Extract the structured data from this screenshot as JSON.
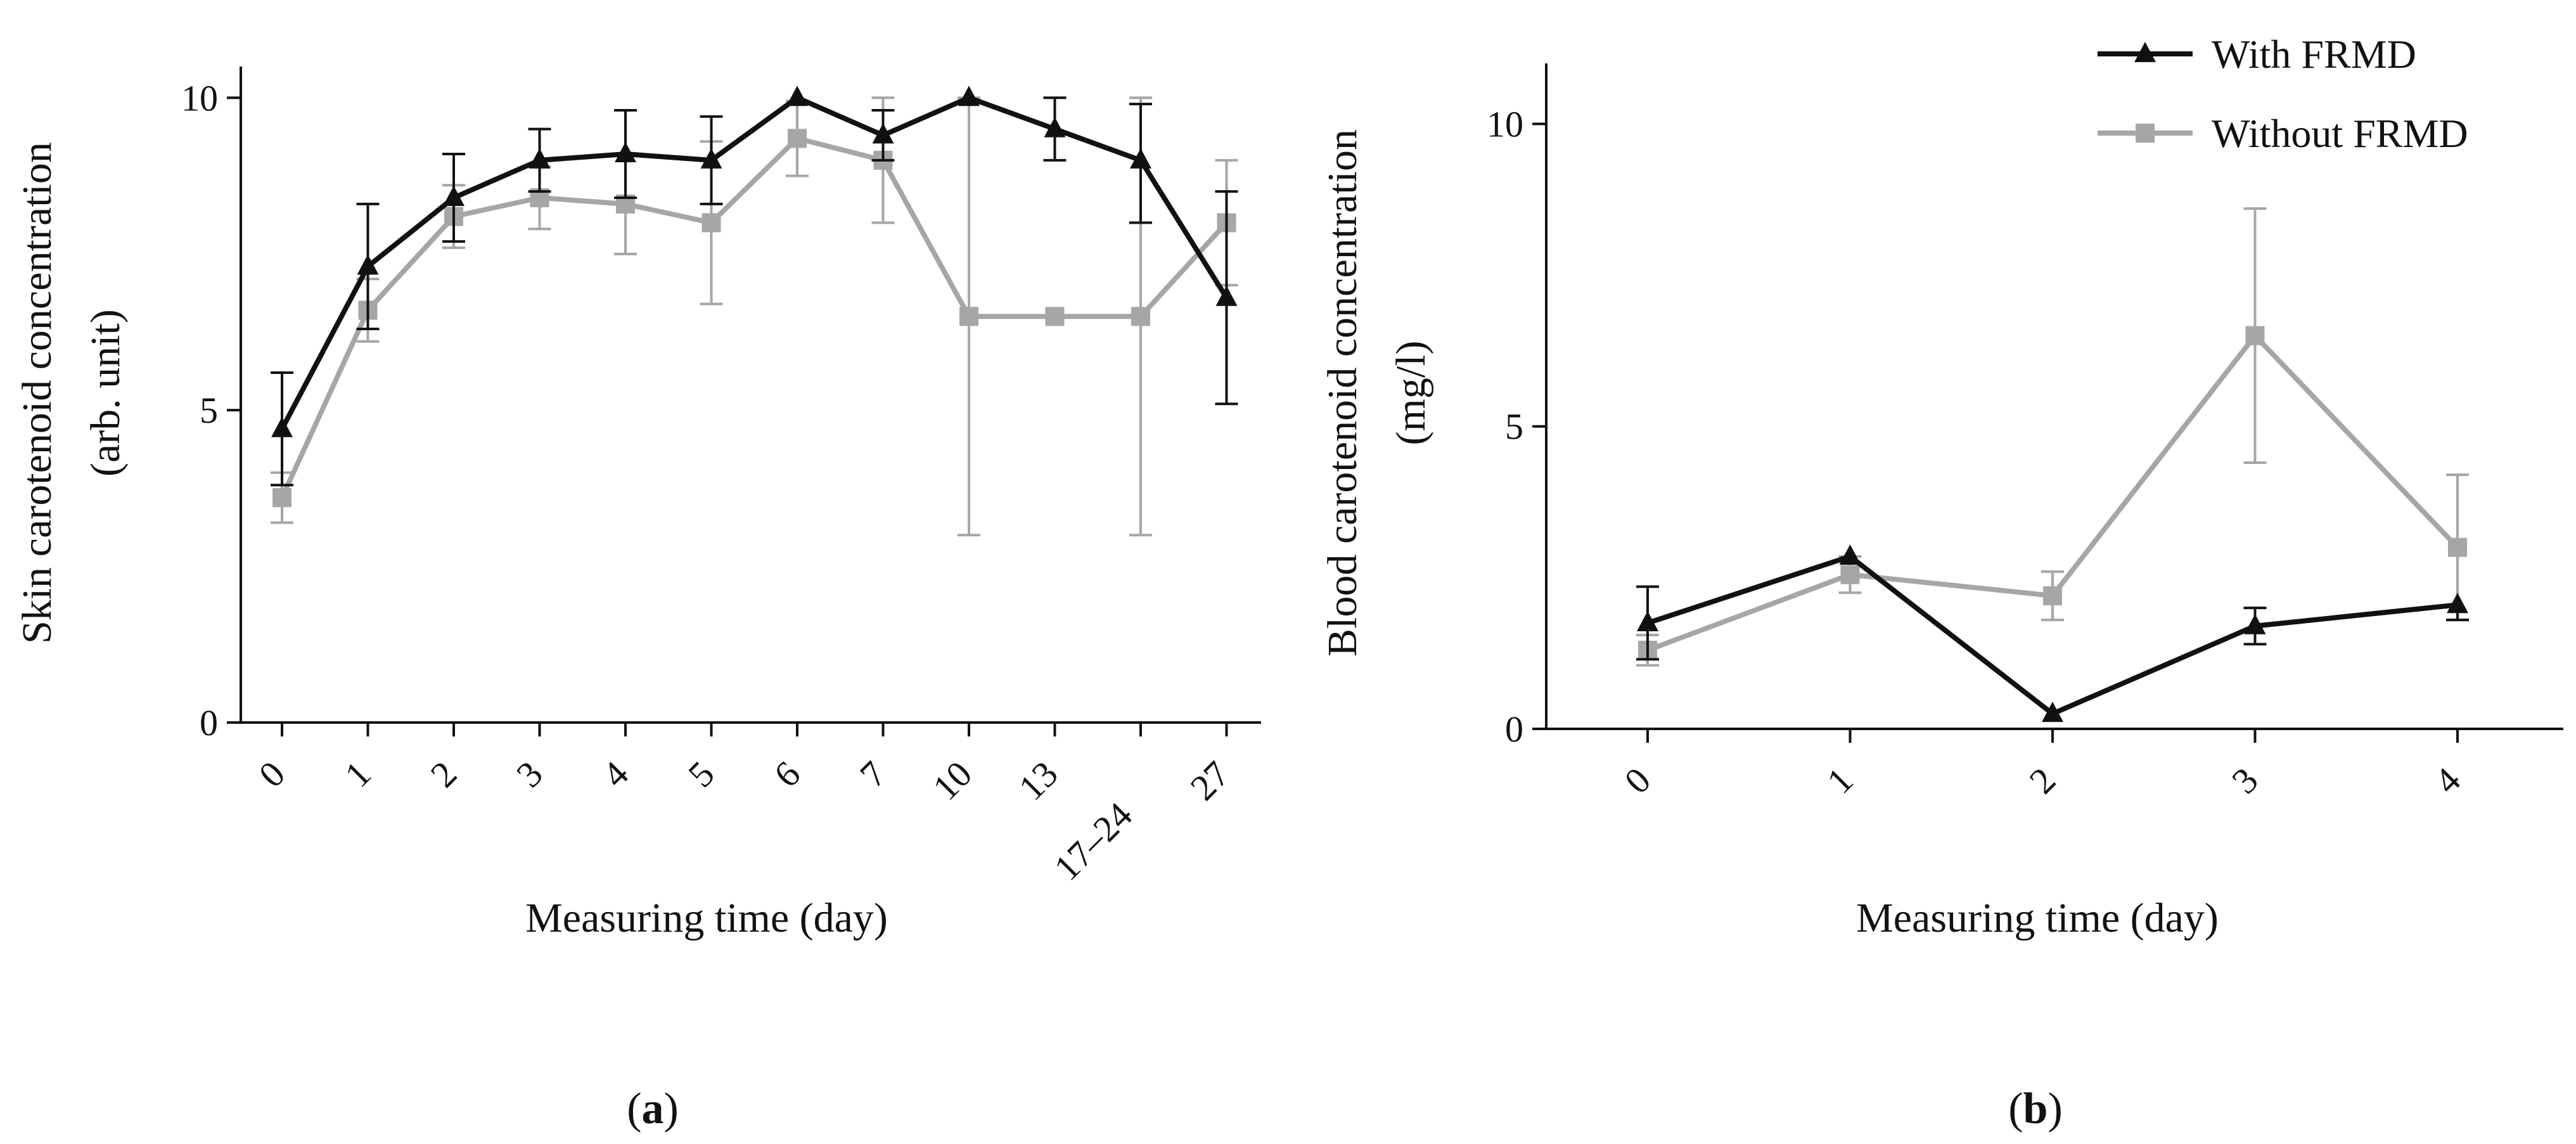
{
  "chart_data": [
    {
      "type": "line",
      "panel_label_prefix": "(",
      "panel_label_letter": "a",
      "panel_label_suffix": ")",
      "xlabel": "Measuring time (day)",
      "ylabel_line1": "Skin carotenoid concentration",
      "ylabel_line2": "(arb. unit)",
      "categories": [
        "0",
        "1",
        "2",
        "3",
        "4",
        "5",
        "6",
        "7",
        "10",
        "13",
        "17–24",
        "27"
      ],
      "ylim": [
        0,
        10.5
      ],
      "yticks": [
        0,
        5,
        10
      ],
      "series": [
        {
          "name": "With FRMD",
          "color": "#111111",
          "marker": "triangle",
          "values": [
            4.7,
            7.3,
            8.4,
            9.0,
            9.1,
            9.0,
            10.0,
            9.4,
            10.0,
            9.5,
            9.0,
            6.8
          ],
          "err_up": [
            0.9,
            1.0,
            0.7,
            0.5,
            0.7,
            0.7,
            0.0,
            0.4,
            0.0,
            0.5,
            0.9,
            1.7
          ],
          "err_down": [
            0.9,
            1.0,
            0.7,
            0.5,
            0.7,
            0.7,
            0.0,
            0.4,
            0.0,
            0.5,
            1.0,
            1.7
          ]
        },
        {
          "name": "Without FRMD",
          "color": "#a6a6a6",
          "marker": "square",
          "values": [
            3.6,
            6.6,
            8.1,
            8.4,
            8.3,
            8.0,
            9.35,
            9.0,
            6.5,
            6.5,
            6.5,
            8.0
          ],
          "err_up": [
            0.4,
            0.5,
            0.5,
            0.5,
            0.8,
            1.3,
            0.6,
            1.0,
            3.5,
            0.0,
            3.5,
            1.0
          ],
          "err_down": [
            0.4,
            0.5,
            0.5,
            0.5,
            0.8,
            1.3,
            0.6,
            1.0,
            3.5,
            0.0,
            3.5,
            1.0
          ]
        }
      ]
    },
    {
      "type": "line",
      "panel_label_prefix": "(",
      "panel_label_letter": "b",
      "panel_label_suffix": ")",
      "xlabel": "Measuring time (day)",
      "ylabel_line1": "Blood carotenoid concentration",
      "ylabel_line2": "(mg/l)",
      "categories": [
        "0",
        "1",
        "2",
        "3",
        "4"
      ],
      "ylim": [
        0,
        11
      ],
      "yticks": [
        0,
        5,
        10
      ],
      "legend": {
        "placement": "top-right",
        "entries": [
          "With FRMD",
          "Without FRMD"
        ]
      },
      "series": [
        {
          "name": "With FRMD",
          "color": "#111111",
          "marker": "triangle",
          "values": [
            1.75,
            2.85,
            0.25,
            1.7,
            2.05
          ],
          "err_up": [
            0.6,
            0.0,
            0.0,
            0.3,
            0.0
          ],
          "err_down": [
            0.6,
            0.0,
            0.0,
            0.3,
            0.25
          ]
        },
        {
          "name": "Without FRMD",
          "color": "#a6a6a6",
          "marker": "square",
          "values": [
            1.3,
            2.55,
            2.2,
            6.5,
            3.0
          ],
          "err_up": [
            0.25,
            0.3,
            0.4,
            2.1,
            1.2
          ],
          "err_down": [
            0.25,
            0.3,
            0.4,
            2.1,
            1.2
          ]
        }
      ]
    }
  ]
}
